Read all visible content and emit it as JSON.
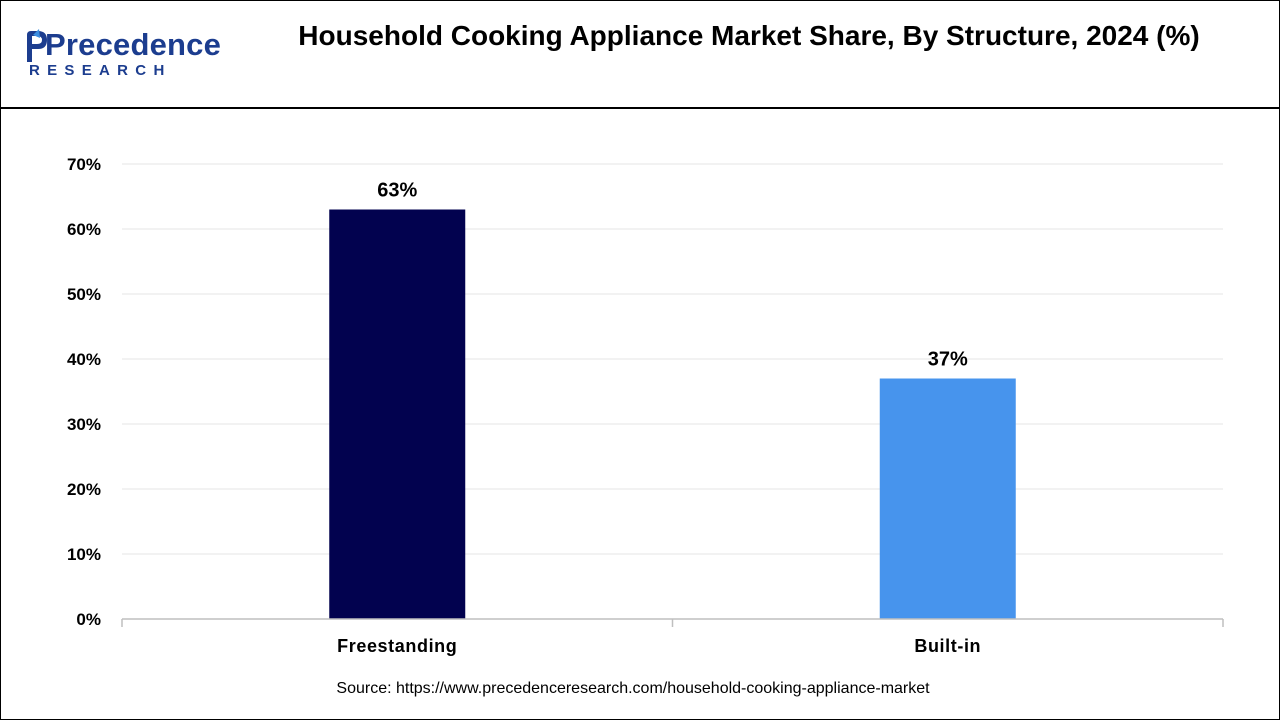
{
  "header": {
    "logo_name": "Precedence",
    "logo_sub": "RESEARCH",
    "title": "Household Cooking Appliance Market Share, By Structure, 2024 (%)"
  },
  "chart_data": {
    "type": "bar",
    "title": "Household Cooking Appliance Market Share, By Structure, 2024 (%)",
    "categories": [
      "Freestanding",
      "Built-in"
    ],
    "values": [
      63,
      37
    ],
    "data_labels": [
      "63%",
      "37%"
    ],
    "bar_colors": [
      "#02024f",
      "#4794ed"
    ],
    "yticks": [
      0,
      10,
      20,
      30,
      40,
      50,
      60,
      70
    ],
    "ytick_labels": [
      "0%",
      "10%",
      "20%",
      "30%",
      "40%",
      "50%",
      "60%",
      "70%"
    ],
    "ylim": [
      0,
      70
    ],
    "grid": true,
    "legend": "none"
  },
  "footer": {
    "source": "Source: https://www.precedenceresearch.com/household-cooking-appliance-market"
  },
  "colors": {
    "brand": "#1c3d8f",
    "grid": "#e6e6e6",
    "axis": "#bfbfbf"
  }
}
